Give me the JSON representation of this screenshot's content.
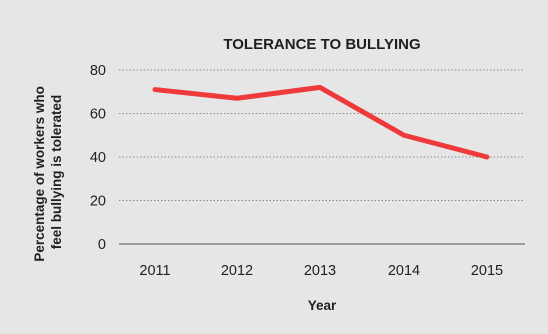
{
  "chart_data": {
    "type": "line",
    "title": "TOLERANCE TO BULLYING",
    "xlabel": "Year",
    "ylabel_lines": [
      "Percentage of workers who",
      "feel bullying is tolerated"
    ],
    "categories": [
      "2011",
      "2012",
      "2013",
      "2014",
      "2015"
    ],
    "series": [
      {
        "values": [
          71,
          67,
          72,
          50,
          40
        ]
      }
    ],
    "ylim": [
      0,
      80
    ],
    "yticks": [
      0,
      20,
      40,
      60,
      80
    ],
    "grid": true,
    "colors": {
      "line": "#ee3a3a",
      "grid": "#8a8a8a",
      "background": "#e6e6e7"
    }
  }
}
